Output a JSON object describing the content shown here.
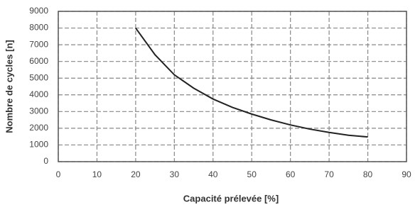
{
  "chart_data": {
    "type": "line",
    "x_label": "Capacité prélevée [%]",
    "y_label": "Nombre de cycles [n]",
    "x": [
      20,
      25,
      30,
      35,
      40,
      45,
      50,
      55,
      60,
      65,
      70,
      75,
      80
    ],
    "values": [
      8000,
      6400,
      5200,
      4400,
      3750,
      3250,
      2850,
      2500,
      2200,
      1950,
      1750,
      1580,
      1480
    ],
    "color": "#222222",
    "xlim": [
      0,
      90
    ],
    "xticks": [
      0,
      10,
      20,
      30,
      40,
      50,
      60,
      70,
      80,
      90
    ],
    "ylim": [
      0,
      9000
    ],
    "yticks": [
      0,
      1000,
      2000,
      3000,
      4000,
      5000,
      6000,
      7000,
      8000,
      9000
    ],
    "grid": true
  }
}
